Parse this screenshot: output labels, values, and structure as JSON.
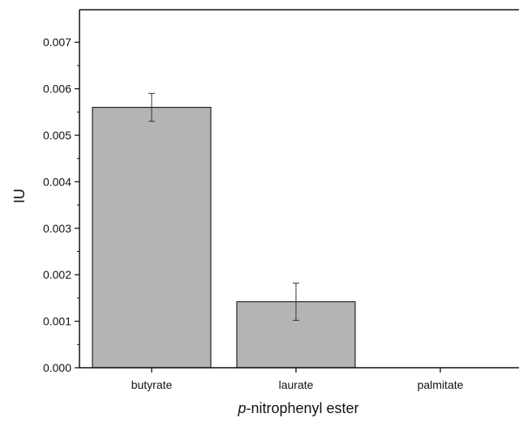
{
  "chart_data": {
    "type": "bar",
    "title": "",
    "xlabel_italic_part": "p",
    "xlabel_rest": "-nitrophenyl ester",
    "ylabel": "IU",
    "categories": [
      "butyrate",
      "laurate",
      "palmitate"
    ],
    "values": [
      0.0056,
      0.00142,
      0.0
    ],
    "error_bars": [
      0.0003,
      0.0004,
      0.0
    ],
    "ylim": [
      0,
      0.0077
    ],
    "yticks": [
      0.0,
      0.001,
      0.002,
      0.003,
      0.004,
      0.005,
      0.006,
      0.007
    ],
    "ytick_labels": [
      "0.000",
      "0.001",
      "0.002",
      "0.003",
      "0.004",
      "0.005",
      "0.006",
      "0.007"
    ],
    "grid": false,
    "legend": "none",
    "bar_color": "#b4b4b4",
    "bar_edge_color": "#222222",
    "axis_color": "#111111"
  }
}
